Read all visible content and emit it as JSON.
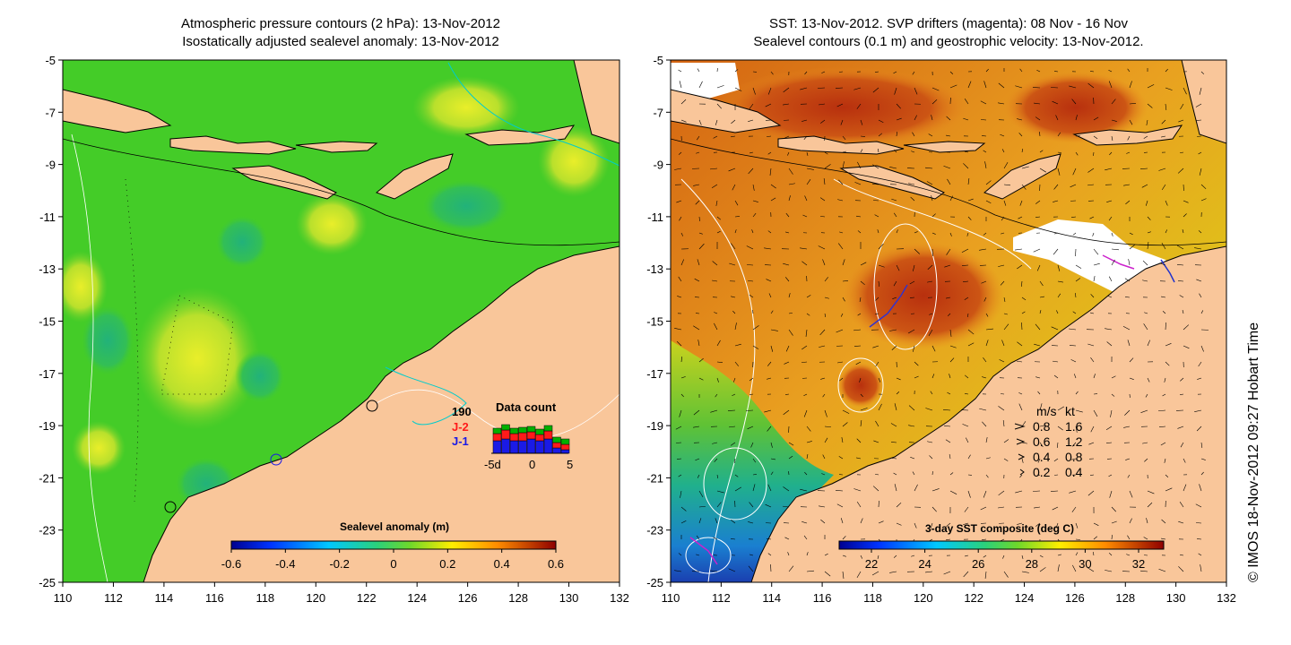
{
  "left_panel": {
    "title_line1": "Atmospheric pressure contours (2 hPa): 13-Nov-2012",
    "title_line2": "Isostatically adjusted sealevel anomaly: 13-Nov-2012",
    "colorbar_title": "Sealevel anomaly (m)",
    "colorbar_ticks": [
      "-0.6",
      "-0.4",
      "-0.2",
      "0",
      "0.2",
      "0.4",
      "0.6"
    ],
    "data_count": {
      "title": "Data count",
      "count_label": "190",
      "series": [
        "J-2",
        "J-1"
      ],
      "series_colors": [
        "#ff1a1a",
        "#1a1ae6"
      ],
      "count_color": "#00b000",
      "ticks": [
        "-5d",
        "0",
        "5"
      ]
    }
  },
  "right_panel": {
    "title_line1": "SST: 13-Nov-2012. SVP drifters (magenta): 08 Nov - 16 Nov",
    "title_line2": "Sealevel contours (0.1 m) and geostrophic velocity: 13-Nov-2012.",
    "colorbar_title": "3-day SST composite (deg C)",
    "colorbar_ticks": [
      "22",
      "24",
      "26",
      "28",
      "30",
      "32"
    ],
    "velocity_legend": {
      "header_ms": "m/s",
      "header_kt": "kt",
      "rows": [
        {
          "ms": "0.8",
          "kt": "1.6"
        },
        {
          "ms": "0.6",
          "kt": "1.2"
        },
        {
          "ms": "0.4",
          "kt": "0.8"
        },
        {
          "ms": "0.2",
          "kt": "0.4"
        }
      ]
    }
  },
  "axes": {
    "x_ticks": [
      "110",
      "112",
      "114",
      "116",
      "118",
      "120",
      "122",
      "124",
      "126",
      "128",
      "130",
      "132"
    ],
    "y_ticks": [
      "-5",
      "-7",
      "-9",
      "-11",
      "-13",
      "-15",
      "-17",
      "-19",
      "-21",
      "-23",
      "-25"
    ],
    "lon_range": [
      110,
      132
    ],
    "lat_range": [
      -25,
      -5
    ]
  },
  "credit": "© IMOS 18-Nov-2012 09:27 Hobart Time",
  "colors": {
    "land": "#f9c69a",
    "sla_background": "#44cc28",
    "sst_background": "#e88a1e",
    "contour_white": "#ffffff",
    "drifter": "#cc22cc"
  }
}
